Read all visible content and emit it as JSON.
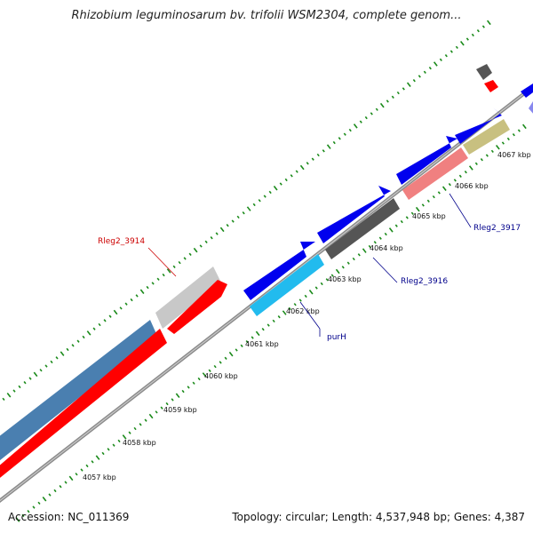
{
  "title": "Rhizobium leguminosarum bv. trifolii WSM2304, complete genom...",
  "footer": {
    "accession": "Accession: NC_011369",
    "summary": "Topology: circular; Length: 4,537,948 bp; Genes: 4,387"
  },
  "scale_labels": [
    "4057 kbp",
    "4058 kbp",
    "4059 kbp",
    "4060 kbp",
    "4061 kbp",
    "4062 kbp",
    "4063 kbp",
    "4064 kbp",
    "4065 kbp",
    "4066 kbp",
    "4067 kbp"
  ],
  "gene_labels": [
    {
      "text": "Rleg2_3914",
      "color": "#cc0000"
    },
    {
      "text": "purH",
      "color": "#00008b"
    },
    {
      "text": "Rleg2_3916",
      "color": "#00008b"
    },
    {
      "text": "Rleg2_3917",
      "color": "#00008b"
    }
  ],
  "colors": {
    "backbone": "#8a8a8a",
    "tick_green": "#1a8a1a",
    "cds_blue": "#0000ee",
    "cds_red": "#ff0000",
    "steelblue": "#4a7fb0",
    "cyan": "#22bbee",
    "grey_dark": "#555555",
    "grey_light": "#c8c8c8",
    "salmon": "#f08080",
    "olive": "#c8c080",
    "lavender": "#8888ee"
  }
}
